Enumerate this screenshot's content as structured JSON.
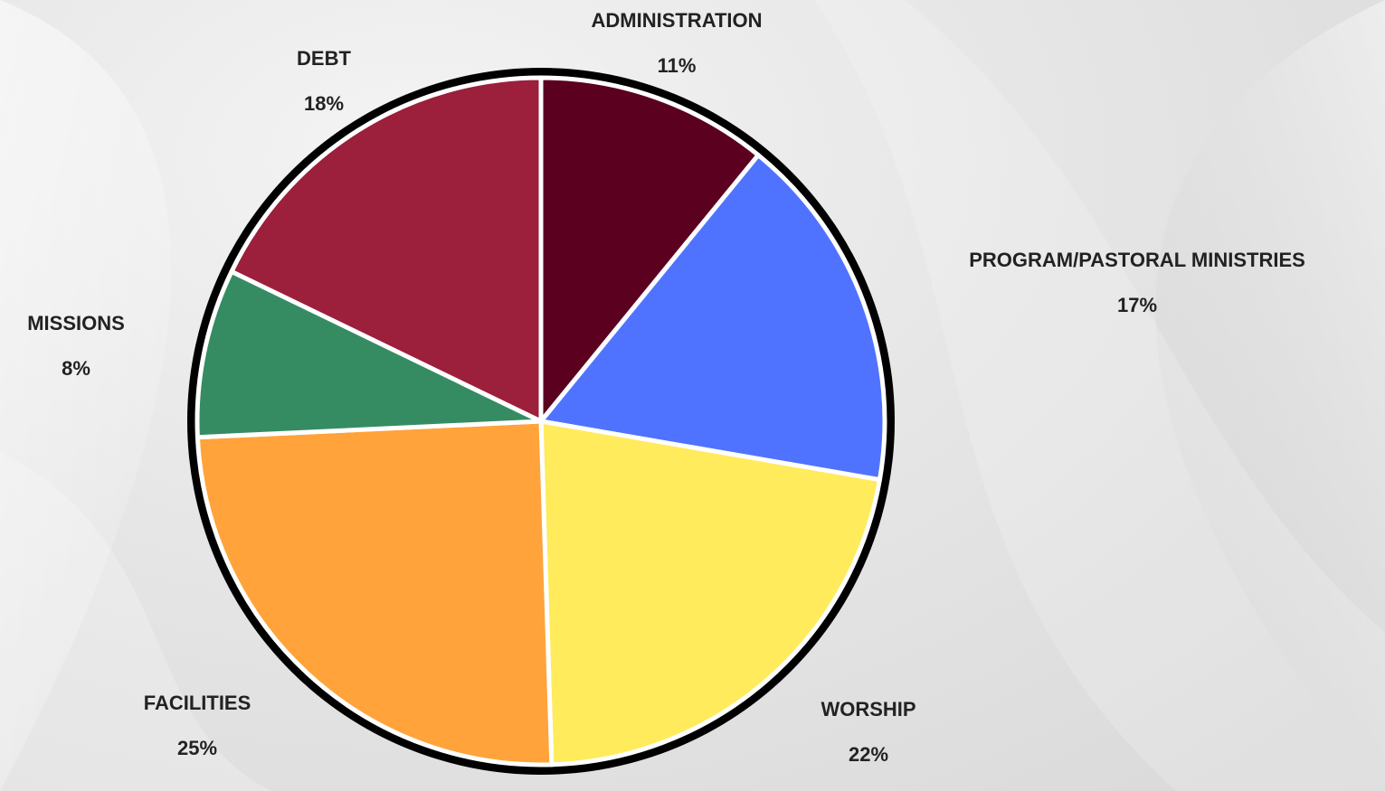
{
  "chart_data": {
    "type": "pie",
    "slices": [
      {
        "label": "ADMINISTRATION",
        "value": 11,
        "value_label": "11%",
        "color": "#5c001f"
      },
      {
        "label": "PROGRAM/PASTORAL MINISTRIES",
        "value": 17,
        "value_label": "17%",
        "color": "#5073ff"
      },
      {
        "label": "WORSHIP",
        "value": 22,
        "value_label": "22%",
        "color": "#ffeb5c"
      },
      {
        "label": "FACILITIES",
        "value": 25,
        "value_label": "25%",
        "color": "#ffa33a"
      },
      {
        "label": "MISSIONS",
        "value": 8,
        "value_label": "8%",
        "color": "#368c62"
      },
      {
        "label": "DEBT",
        "value": 18,
        "value_label": "18%",
        "color": "#9c1f3c"
      }
    ],
    "start_angle": "12 o'clock",
    "direction": "clockwise",
    "outline_color": "#000000",
    "separator_color": "#ffffff"
  }
}
